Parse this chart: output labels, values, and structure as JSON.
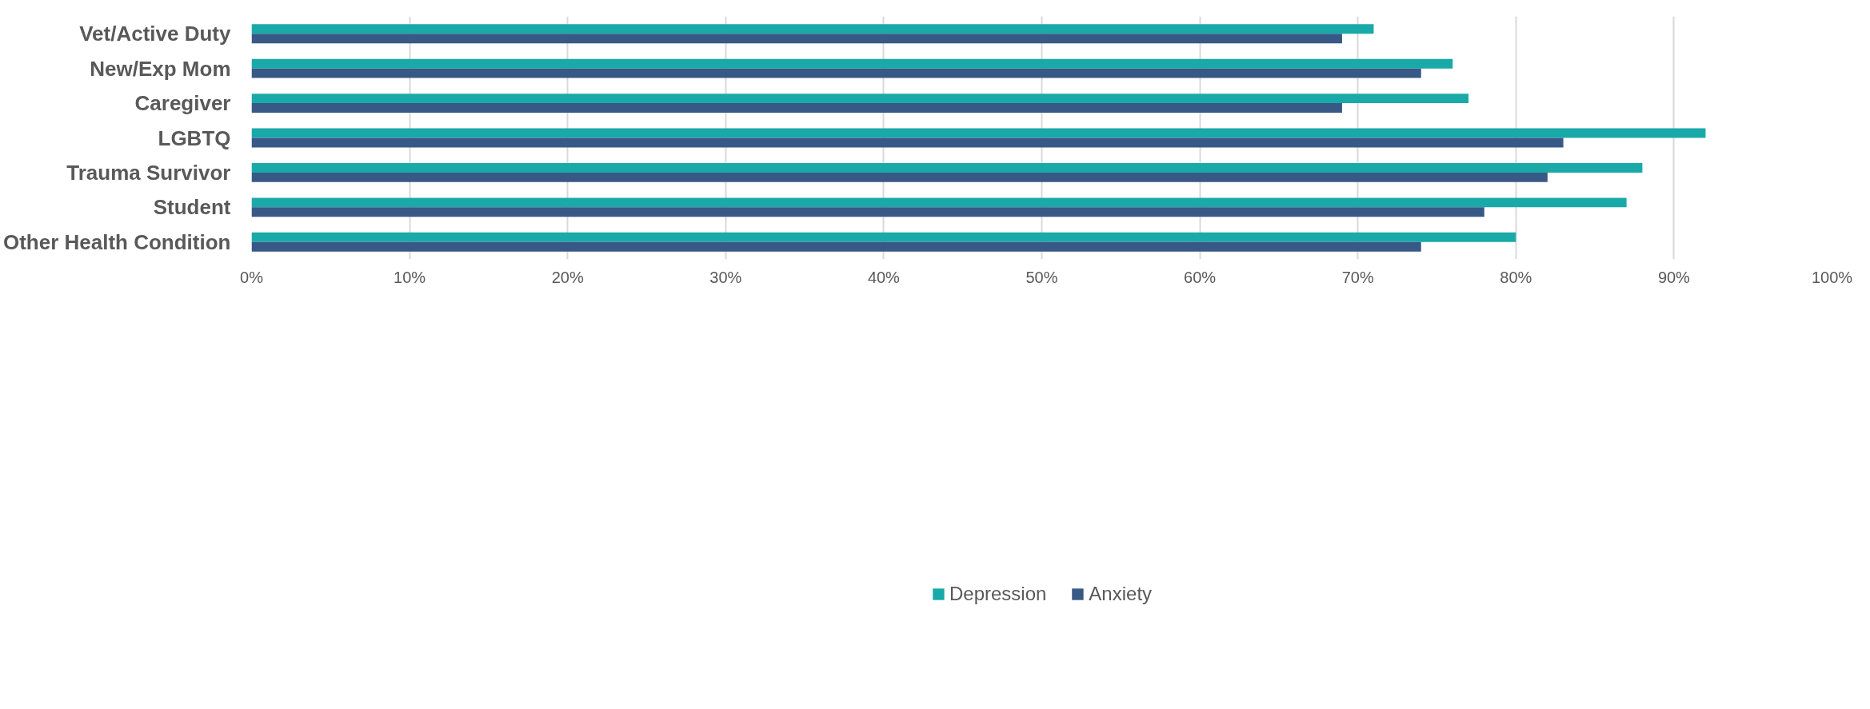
{
  "chart_data": {
    "type": "bar",
    "orientation": "horizontal",
    "categories": [
      "Vet/Active Duty",
      "New/Exp Mom",
      "Caregiver",
      "LGBTQ",
      "Trauma Survivor",
      "Student",
      "Other Health Condition"
    ],
    "series": [
      {
        "name": "Depression",
        "color": "#1aa9a9",
        "values": [
          71,
          76,
          77,
          92,
          88,
          87,
          80
        ]
      },
      {
        "name": "Anxiety",
        "color": "#385886",
        "values": [
          69,
          74,
          69,
          83,
          82,
          78,
          74
        ]
      }
    ],
    "xlim": [
      0,
      100
    ],
    "xticks": [
      {
        "value": 0,
        "label": "0%"
      },
      {
        "value": 10,
        "label": "10%"
      },
      {
        "value": 20,
        "label": "20%"
      },
      {
        "value": 30,
        "label": "30%"
      },
      {
        "value": 40,
        "label": "40%"
      },
      {
        "value": 50,
        "label": "50%"
      },
      {
        "value": 60,
        "label": "60%"
      },
      {
        "value": 70,
        "label": "70%"
      },
      {
        "value": 80,
        "label": "80%"
      },
      {
        "value": 90,
        "label": "90%"
      },
      {
        "value": 100,
        "label": "100%"
      }
    ],
    "grid": "x",
    "legend": "bottom"
  }
}
